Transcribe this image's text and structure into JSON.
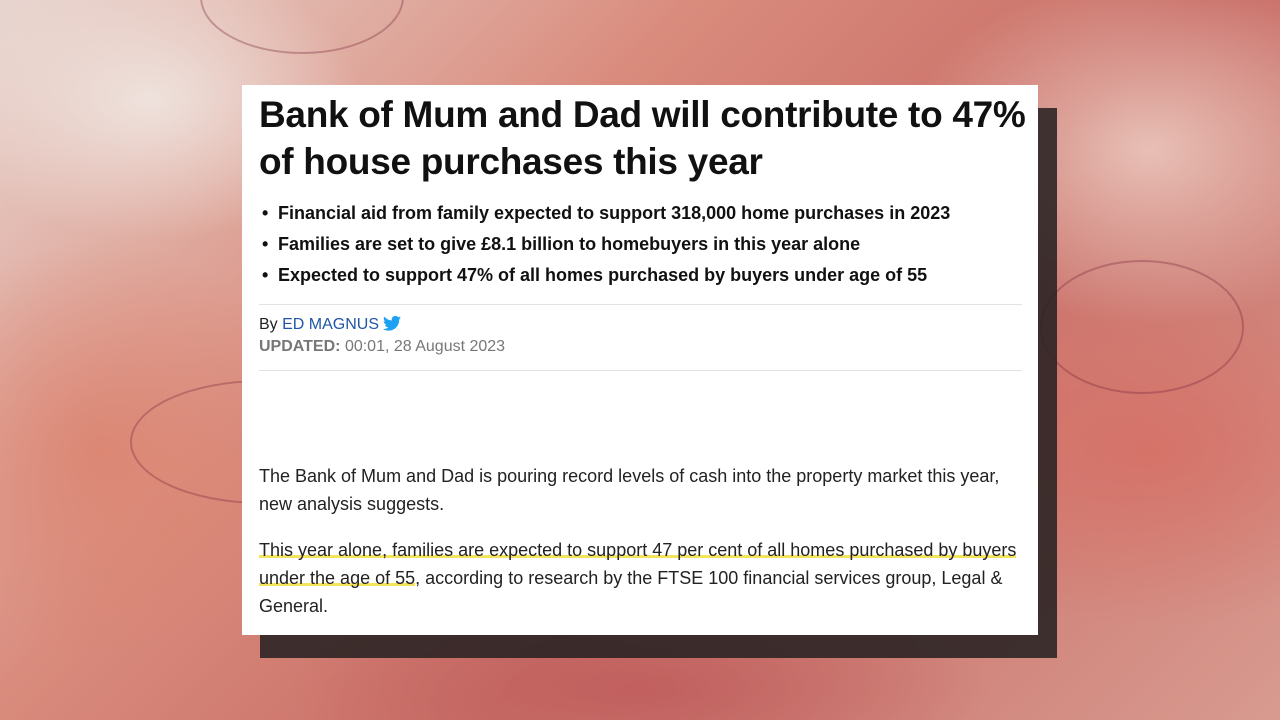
{
  "article": {
    "title": "Bank of Mum and Dad will contribute to 47% of house purchases this year",
    "bullets": [
      "Financial aid from family expected to support 318,000 home purchases in 2023",
      "Families are set to give £8.1 billion to homebuyers in this year alone",
      "Expected to support 47% of all homes purchased by buyers under age of 55"
    ],
    "byline_prefix": "By",
    "author": "ED MAGNUS",
    "updated_label": "UPDATED:",
    "updated_value": "00:01, 28 August 2023",
    "paragraph1": "The Bank of Mum and Dad is pouring record levels of cash into the property market this year, new analysis suggests.",
    "paragraph2_highlight": "This year alone, families are expected to support 47 per cent of all homes purchased by buyers under the age of 55",
    "paragraph2_rest": ", according to research by the FTSE 100 financial services group, Legal & General."
  },
  "colors": {
    "author_link": "#1f57a8",
    "twitter": "#1da1f2",
    "highlight": "#f4e45c"
  },
  "icons": {
    "author_social": "twitter-bird-icon"
  }
}
